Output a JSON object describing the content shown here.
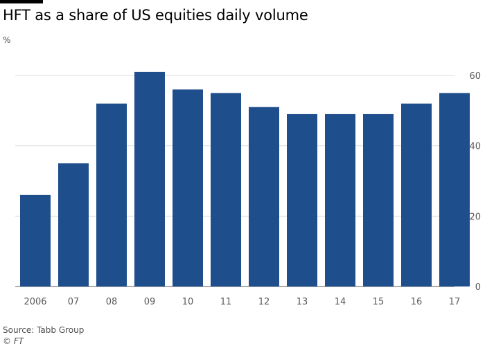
{
  "title": "HFT as a share of US equities daily volume",
  "unit_label": "%",
  "source": "Source: Tabb Group",
  "credit": "© FT",
  "colors": {
    "bar": "#1f4e8c",
    "grid": "#dcdcdc",
    "axis": "#595959",
    "top_bar": "#000000"
  },
  "chart_data": {
    "type": "bar",
    "title": "HFT as a share of US equities daily volume",
    "ylabel": "%",
    "categories": [
      "2006",
      "07",
      "08",
      "09",
      "10",
      "11",
      "12",
      "13",
      "14",
      "15",
      "16",
      "17"
    ],
    "values": [
      26,
      35,
      52,
      61,
      56,
      55,
      51,
      49,
      49,
      49,
      52,
      55
    ],
    "ylim": [
      0,
      60
    ],
    "yticks": [
      0,
      20,
      40,
      60
    ],
    "grid": true,
    "y_axis_side": "right"
  }
}
